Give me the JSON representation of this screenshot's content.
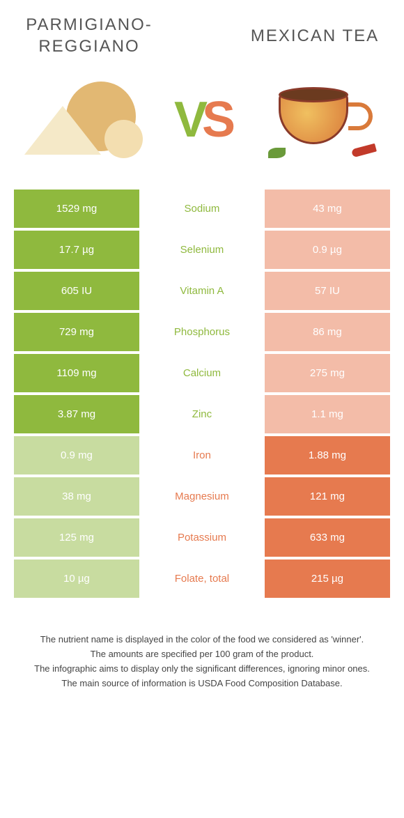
{
  "header": {
    "left_title": "Parmigiano-Reggiano",
    "right_title": "Mexican tea",
    "vs_v": "V",
    "vs_s": "S"
  },
  "colors": {
    "green": "#8fb93e",
    "orange": "#e67a4f",
    "dim_green": "#c8dca0",
    "dim_orange": "#f3bca8"
  },
  "rows": [
    {
      "left": "1529 mg",
      "label": "Sodium",
      "right": "43 mg",
      "winner": "left"
    },
    {
      "left": "17.7 µg",
      "label": "Selenium",
      "right": "0.9 µg",
      "winner": "left"
    },
    {
      "left": "605 IU",
      "label": "Vitamin A",
      "right": "57 IU",
      "winner": "left"
    },
    {
      "left": "729 mg",
      "label": "Phosphorus",
      "right": "86 mg",
      "winner": "left"
    },
    {
      "left": "1109 mg",
      "label": "Calcium",
      "right": "275 mg",
      "winner": "left"
    },
    {
      "left": "3.87 mg",
      "label": "Zinc",
      "right": "1.1 mg",
      "winner": "left"
    },
    {
      "left": "0.9 mg",
      "label": "Iron",
      "right": "1.88 mg",
      "winner": "right"
    },
    {
      "left": "38 mg",
      "label": "Magnesium",
      "right": "121 mg",
      "winner": "right"
    },
    {
      "left": "125 mg",
      "label": "Potassium",
      "right": "633 mg",
      "winner": "right"
    },
    {
      "left": "10 µg",
      "label": "Folate, total",
      "right": "215 µg",
      "winner": "right"
    }
  ],
  "footnotes": [
    "The nutrient name is displayed in the color of the food we considered as 'winner'.",
    "The amounts are specified per 100 gram of the product.",
    "The infographic aims to display only the significant differences, ignoring minor ones.",
    "The main source of information is USDA Food Composition Database."
  ]
}
